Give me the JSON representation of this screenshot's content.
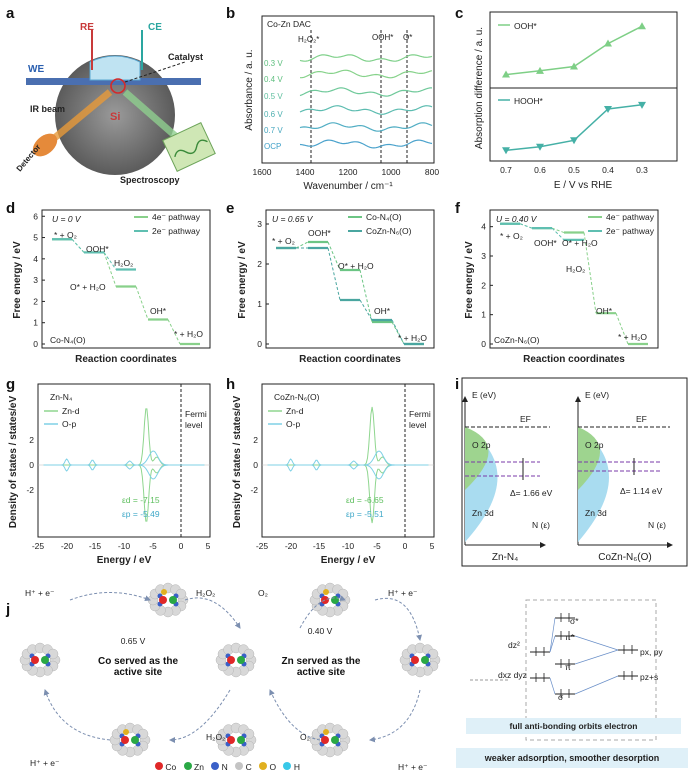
{
  "panel_letters": [
    "a",
    "b",
    "c",
    "d",
    "e",
    "f",
    "g",
    "h",
    "i",
    "j"
  ],
  "panel_a": {
    "labels": [
      "RE",
      "CE",
      "WE",
      "Catalyst",
      "Si",
      "IR beam",
      "Detector",
      "Spectroscopy"
    ]
  },
  "panel_b": {
    "title": "Co-Zn DAC",
    "xlabel": "Wavenumber / cm⁻¹",
    "ylabel": "Absorbance / a. u.",
    "xticks": [
      "1600",
      "1400",
      "1200",
      "1000",
      "800"
    ],
    "markers": [
      "H₂O₂*",
      "OOH*",
      "O*"
    ],
    "potentials": [
      "0.3 V",
      "0.4 V",
      "0.5 V",
      "0.6 V",
      "0.7 V",
      "OCP"
    ]
  },
  "panel_c": {
    "ylabel": "Absorption difference / a. u.",
    "xlabel": "E / V vs RHE",
    "legend_top": "OOH*",
    "legend_bottom": "HOOH*",
    "xticks": [
      "0.7",
      "0.6",
      "0.5",
      "0.4",
      "0.3"
    ]
  },
  "panel_d": {
    "condition": "U = 0 V",
    "catalyst": "Co-N₄(O)",
    "legend": [
      "4e⁻ pathway",
      "2e⁻ pathway"
    ],
    "species": [
      "* + O₂",
      "OOH*",
      "H₂O₂",
      "O* + H₂O",
      "OH*",
      "* + H₂O"
    ],
    "xlabel": "Reaction coordinates",
    "ylabel": "Free energy / eV",
    "yticks": [
      "0",
      "1",
      "2",
      "3",
      "4",
      "5",
      "6"
    ]
  },
  "panel_e": {
    "condition": "U = 0.65 V",
    "legend": [
      "Co-N₄(O)",
      "CoZn-N₆(O)"
    ],
    "species": [
      "* + O₂",
      "OOH*",
      "O* + H₂O",
      "OH*",
      "* + H₂O"
    ],
    "xlabel": "Reaction coordinates",
    "ylabel": "Free energy / eV",
    "yticks": [
      "0",
      "1",
      "2",
      "3"
    ]
  },
  "panel_f": {
    "condition": "U = 0.40 V",
    "catalyst": "CoZn-N₆(O)",
    "legend": [
      "4e⁻ pathway",
      "2e⁻ pathway"
    ],
    "species": [
      "* + O₂",
      "OOH*",
      "O* + H₂O",
      "H₂O₂",
      "OH*",
      "* + H₂O"
    ],
    "xlabel": "Reaction coordinates",
    "ylabel": "Free energy / eV",
    "yticks": [
      "0",
      "1",
      "2",
      "3",
      "4"
    ]
  },
  "panel_g": {
    "title": "Zn-N₄",
    "legend": [
      "Zn-d",
      "O-p"
    ],
    "fermi": [
      "Fermi",
      "level"
    ],
    "ed": "εd = -7.15",
    "ep": "εp = -5.49",
    "xlabel": "Energy / eV",
    "ylabel": "Density of states / states/eV",
    "xticks": [
      "-25",
      "-20",
      "-15",
      "-10",
      "-5",
      "0",
      "5"
    ],
    "yticks": [
      "2",
      "0",
      "-2"
    ]
  },
  "panel_h": {
    "title": "CoZn-N₆(O)",
    "legend": [
      "Zn-d",
      "O-p"
    ],
    "fermi": [
      "Fermi",
      "level"
    ],
    "ed": "εd = -6.65",
    "ep": "εp = -5.51",
    "xlabel": "Energy / eV",
    "ylabel": "Density of states / states/eV",
    "xticks": [
      "-25",
      "-20",
      "-15",
      "-10",
      "-5",
      "0",
      "5"
    ],
    "yticks": [
      "2",
      "0",
      "-2"
    ]
  },
  "panel_i": {
    "left": {
      "axis": "E (eV)",
      "ef": "EF",
      "o2p": "O 2p",
      "zn3d": "Zn 3d",
      "delta": "Δ= 1.66 eV",
      "n": "N (ε)",
      "name": "Zn-N₄"
    },
    "right": {
      "axis": "E (eV)",
      "ef": "EF",
      "o2p": "O 2p",
      "zn3d": "Zn 3d",
      "delta": "Δ= 1.14 eV",
      "n": "N (ε)",
      "name": "CoZn-N₆(O)"
    }
  },
  "panel_j": {
    "steps": [
      "H⁺ + e⁻",
      "H₂O₂",
      "O₂",
      "H⁺ + e⁻",
      "H⁺ + e⁻",
      "O₂",
      "H₂O₂",
      "H⁺ + e⁻"
    ],
    "v1": "0.65 V",
    "v2": "0.40 V",
    "co_text": "Co served as the active site",
    "zn_text": "Zn served as the active site",
    "orbitals": [
      "σ*",
      "π*",
      "π",
      "σ",
      "dz²",
      "dxz dyz",
      "px, py",
      "pz+s"
    ],
    "box1": "full anti-bonding orbits electron",
    "box2": "weaker adsorption, smoother desorption",
    "legend": [
      "Co",
      "Zn",
      "N",
      "C",
      "O",
      "H"
    ]
  },
  "colors": {
    "four_e": "#88d08a",
    "two_e": "#5fbfb1",
    "co_n4": "#6cc584",
    "cozn": "#4aa6a0",
    "c_top": "#7ecf86",
    "c_bottom": "#45b0a6",
    "zn_d": "#8fd68f",
    "o_p": "#7fd1e6",
    "box_bg": "#dff0f8"
  },
  "chart_data": [
    {
      "type": "line",
      "panel": "c",
      "title": "",
      "xlabel": "E / V vs RHE",
      "ylabel": "Absorption difference / a. u.",
      "categories": [
        "0.7",
        "0.6",
        "0.5",
        "0.4",
        "0.3"
      ],
      "series": [
        {
          "name": "OOH*",
          "values": [
            0.12,
            0.18,
            0.25,
            0.62,
            0.9
          ]
        },
        {
          "name": "HOOH*",
          "values": [
            0.08,
            0.14,
            0.25,
            0.78,
            0.85
          ]
        }
      ]
    },
    {
      "type": "line",
      "panel": "d",
      "title": "",
      "xlabel": "Reaction coordinates",
      "ylabel": "Free energy / eV",
      "ylim": [
        0,
        6
      ],
      "series": [
        {
          "name": "4e⁻ pathway",
          "values": [
            4.92,
            4.3,
            2.7,
            1.15,
            0
          ]
        },
        {
          "name": "2e⁻ pathway",
          "values": [
            4.92,
            4.3,
            3.5
          ]
        }
      ]
    },
    {
      "type": "line",
      "panel": "e",
      "title": "",
      "xlabel": "Reaction coordinates",
      "ylabel": "Free energy / eV",
      "ylim": [
        0,
        3
      ],
      "series": [
        {
          "name": "Co-N₄(O)",
          "values": [
            2.4,
            2.55,
            1.85,
            0.55,
            0
          ]
        },
        {
          "name": "CoZn-N₆(O)",
          "values": [
            2.4,
            2.4,
            1.1,
            0.6,
            0
          ]
        }
      ]
    },
    {
      "type": "line",
      "panel": "f",
      "title": "",
      "xlabel": "Reaction coordinates",
      "ylabel": "Free energy / eV",
      "ylim": [
        0,
        4
      ],
      "series": [
        {
          "name": "4e⁻ pathway",
          "values": [
            4.1,
            3.95,
            3.8,
            1.05,
            0
          ]
        },
        {
          "name": "2e⁻ pathway",
          "values": [
            4.1,
            3.95,
            3.55
          ]
        }
      ]
    }
  ]
}
